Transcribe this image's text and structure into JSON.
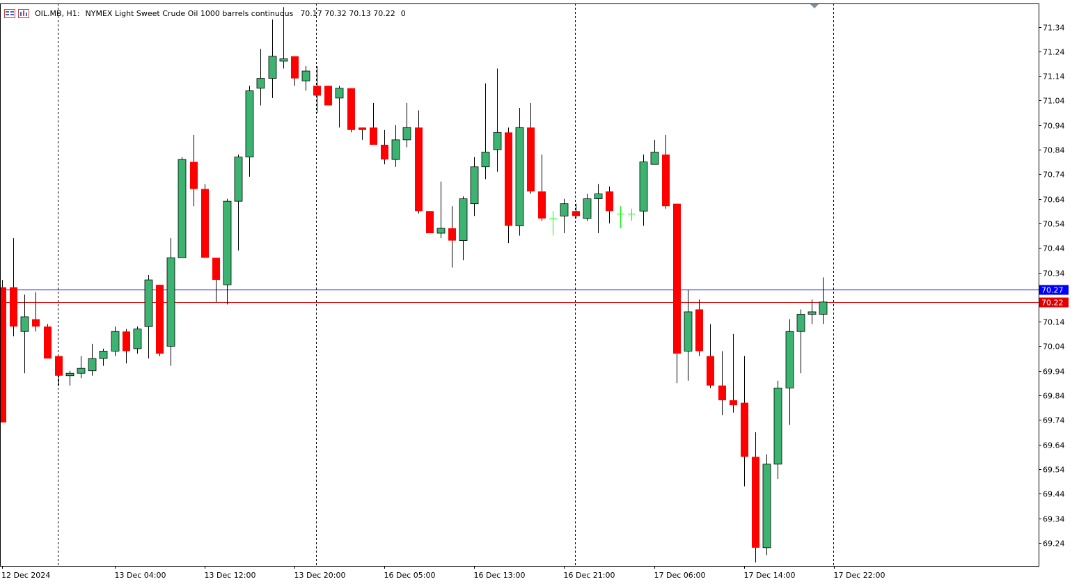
{
  "header": {
    "symbol": "OIL.MB, H1:",
    "description": "NYMEX Light Sweet Crude Oil 1000 barrels continuous",
    "ohlc": "70.17 70.32 70.13 70.22",
    "spread": "0"
  },
  "icons": [
    "list-icon",
    "chart-window-icon"
  ],
  "colors": {
    "bull": "#3cb371",
    "bear": "#ff0000",
    "doji": "#00ff00",
    "ask_line": "#0000ff",
    "bid_line": "#e00000",
    "grid_separator": "#000000"
  },
  "chart_data": {
    "type": "candlestick",
    "y_axis": {
      "ticks": [
        "71.34",
        "71.24",
        "71.14",
        "71.04",
        "70.94",
        "70.84",
        "70.74",
        "70.64",
        "70.54",
        "70.44",
        "70.34",
        "70.14",
        "70.04",
        "69.94",
        "69.84",
        "69.74",
        "69.64",
        "69.54",
        "69.44",
        "69.34",
        "69.24"
      ],
      "range": [
        69.14,
        71.42
      ]
    },
    "x_axis": {
      "labels": [
        {
          "text": "12 Dec 2024",
          "bar": 0
        },
        {
          "text": "13 Dec 04:00",
          "bar": 10
        },
        {
          "text": "13 Dec 12:00",
          "bar": 18
        },
        {
          "text": "13 Dec 20:00",
          "bar": 26
        },
        {
          "text": "16 Dec 05:00",
          "bar": 34
        },
        {
          "text": "16 Dec 13:00",
          "bar": 42
        },
        {
          "text": "16 Dec 21:00",
          "bar": 50
        },
        {
          "text": "17 Dec 06:00",
          "bar": 58
        },
        {
          "text": "17 Dec 14:00",
          "bar": 66
        },
        {
          "text": "17 Dec 22:00",
          "bar": 74
        }
      ]
    },
    "day_separators": [
      5,
      28,
      51,
      74
    ],
    "price_lines": {
      "ask": "70.27",
      "bid": "70.22"
    },
    "candles": [
      {
        "o": 70.28,
        "h": 70.31,
        "l": 69.73,
        "c": 69.73
      },
      {
        "o": 70.28,
        "h": 70.48,
        "l": 70.08,
        "c": 70.12
      },
      {
        "o": 70.1,
        "h": 70.25,
        "l": 69.93,
        "c": 70.16
      },
      {
        "o": 70.15,
        "h": 70.26,
        "l": 70.1,
        "c": 70.12
      },
      {
        "o": 70.12,
        "h": 70.13,
        "l": 69.99,
        "c": 69.99
      },
      {
        "o": 70.0,
        "h": 70.0,
        "l": 69.88,
        "c": 69.92
      },
      {
        "o": 69.92,
        "h": 69.94,
        "l": 69.88,
        "c": 69.93
      },
      {
        "o": 69.93,
        "h": 70.0,
        "l": 69.91,
        "c": 69.95
      },
      {
        "o": 69.94,
        "h": 70.05,
        "l": 69.92,
        "c": 69.99
      },
      {
        "o": 69.99,
        "h": 70.03,
        "l": 69.96,
        "c": 70.02
      },
      {
        "o": 70.02,
        "h": 70.12,
        "l": 70.0,
        "c": 70.1
      },
      {
        "o": 70.1,
        "h": 70.11,
        "l": 69.97,
        "c": 70.02
      },
      {
        "o": 70.03,
        "h": 70.12,
        "l": 70.01,
        "c": 70.11
      },
      {
        "o": 70.12,
        "h": 70.33,
        "l": 69.99,
        "c": 70.31
      },
      {
        "o": 70.29,
        "h": 70.29,
        "l": 70.0,
        "c": 70.01
      },
      {
        "o": 70.04,
        "h": 70.48,
        "l": 69.96,
        "c": 70.4
      },
      {
        "o": 70.4,
        "h": 70.81,
        "l": 70.4,
        "c": 70.8
      },
      {
        "o": 70.79,
        "h": 70.9,
        "l": 70.61,
        "c": 70.68
      },
      {
        "o": 70.68,
        "h": 70.7,
        "l": 70.4,
        "c": 70.4
      },
      {
        "o": 70.4,
        "h": 70.4,
        "l": 70.22,
        "c": 70.31
      },
      {
        "o": 70.29,
        "h": 70.64,
        "l": 70.21,
        "c": 70.63
      },
      {
        "o": 70.63,
        "h": 70.82,
        "l": 70.43,
        "c": 70.81
      },
      {
        "o": 70.81,
        "h": 71.1,
        "l": 70.73,
        "c": 71.08
      },
      {
        "o": 71.09,
        "h": 71.25,
        "l": 71.02,
        "c": 71.13
      },
      {
        "o": 71.13,
        "h": 71.37,
        "l": 71.05,
        "c": 71.22
      },
      {
        "o": 71.2,
        "h": 71.42,
        "l": 71.17,
        "c": 71.21
      },
      {
        "o": 71.22,
        "h": 71.22,
        "l": 71.1,
        "c": 71.13
      },
      {
        "o": 71.12,
        "h": 71.18,
        "l": 71.08,
        "c": 71.16
      },
      {
        "o": 71.1,
        "h": 71.18,
        "l": 70.99,
        "c": 71.06
      },
      {
        "o": 71.1,
        "h": 71.1,
        "l": 71.02,
        "c": 71.02
      },
      {
        "o": 71.05,
        "h": 71.1,
        "l": 70.93,
        "c": 71.09
      },
      {
        "o": 71.09,
        "h": 71.09,
        "l": 70.91,
        "c": 70.92
      },
      {
        "o": 70.93,
        "h": 70.93,
        "l": 70.88,
        "c": 70.92
      },
      {
        "o": 70.93,
        "h": 71.03,
        "l": 70.87,
        "c": 70.86
      },
      {
        "o": 70.86,
        "h": 70.92,
        "l": 70.78,
        "c": 70.8
      },
      {
        "o": 70.8,
        "h": 70.94,
        "l": 70.77,
        "c": 70.88
      },
      {
        "o": 70.88,
        "h": 71.03,
        "l": 70.85,
        "c": 70.93
      },
      {
        "o": 70.93,
        "h": 71.0,
        "l": 70.58,
        "c": 70.59
      },
      {
        "o": 70.59,
        "h": 70.59,
        "l": 70.5,
        "c": 70.5
      },
      {
        "o": 70.5,
        "h": 70.71,
        "l": 70.48,
        "c": 70.52
      },
      {
        "o": 70.52,
        "h": 70.61,
        "l": 70.36,
        "c": 70.47
      },
      {
        "o": 70.47,
        "h": 70.65,
        "l": 70.39,
        "c": 70.64
      },
      {
        "o": 70.62,
        "h": 70.81,
        "l": 70.57,
        "c": 70.77
      },
      {
        "o": 70.77,
        "h": 71.11,
        "l": 70.72,
        "c": 70.83
      },
      {
        "o": 70.84,
        "h": 71.17,
        "l": 70.75,
        "c": 70.91
      },
      {
        "o": 70.91,
        "h": 70.93,
        "l": 70.46,
        "c": 70.53
      },
      {
        "o": 70.53,
        "h": 71.01,
        "l": 70.49,
        "c": 70.93
      },
      {
        "o": 70.93,
        "h": 71.03,
        "l": 70.66,
        "c": 70.67
      },
      {
        "o": 70.67,
        "h": 70.82,
        "l": 70.55,
        "c": 70.56
      },
      {
        "o": 70.56,
        "h": 70.59,
        "l": 70.49,
        "c": 70.56
      },
      {
        "o": 70.57,
        "h": 70.64,
        "l": 70.5,
        "c": 70.62
      },
      {
        "o": 70.59,
        "h": 70.62,
        "l": 70.56,
        "c": 70.57
      },
      {
        "o": 70.56,
        "h": 70.66,
        "l": 70.55,
        "c": 70.64
      },
      {
        "o": 70.64,
        "h": 70.7,
        "l": 70.5,
        "c": 70.66
      },
      {
        "o": 70.67,
        "h": 70.69,
        "l": 70.54,
        "c": 70.59
      },
      {
        "o": 70.58,
        "h": 70.61,
        "l": 70.52,
        "c": 70.58
      },
      {
        "o": 70.58,
        "h": 70.6,
        "l": 70.55,
        "c": 70.58
      },
      {
        "o": 70.59,
        "h": 70.82,
        "l": 70.53,
        "c": 70.79
      },
      {
        "o": 70.78,
        "h": 70.88,
        "l": 70.78,
        "c": 70.83
      },
      {
        "o": 70.82,
        "h": 70.9,
        "l": 70.6,
        "c": 70.61
      },
      {
        "o": 70.62,
        "h": 70.62,
        "l": 69.89,
        "c": 70.01
      },
      {
        "o": 70.02,
        "h": 70.27,
        "l": 69.9,
        "c": 70.18
      },
      {
        "o": 70.19,
        "h": 70.23,
        "l": 70.0,
        "c": 70.02
      },
      {
        "o": 70.0,
        "h": 70.13,
        "l": 69.87,
        "c": 69.88
      },
      {
        "o": 69.88,
        "h": 70.02,
        "l": 69.76,
        "c": 69.82
      },
      {
        "o": 69.82,
        "h": 70.09,
        "l": 69.77,
        "c": 69.8
      },
      {
        "o": 69.81,
        "h": 70.0,
        "l": 69.47,
        "c": 69.59
      },
      {
        "o": 69.59,
        "h": 69.69,
        "l": 69.16,
        "c": 69.22
      },
      {
        "o": 69.22,
        "h": 69.6,
        "l": 69.19,
        "c": 69.56
      },
      {
        "o": 69.56,
        "h": 69.9,
        "l": 69.5,
        "c": 69.87
      },
      {
        "o": 69.87,
        "h": 70.15,
        "l": 69.72,
        "c": 70.1
      },
      {
        "o": 70.1,
        "h": 70.19,
        "l": 69.93,
        "c": 70.17
      },
      {
        "o": 70.17,
        "h": 70.23,
        "l": 70.13,
        "c": 70.18
      },
      {
        "o": 70.17,
        "h": 70.32,
        "l": 70.13,
        "c": 70.22
      }
    ]
  }
}
